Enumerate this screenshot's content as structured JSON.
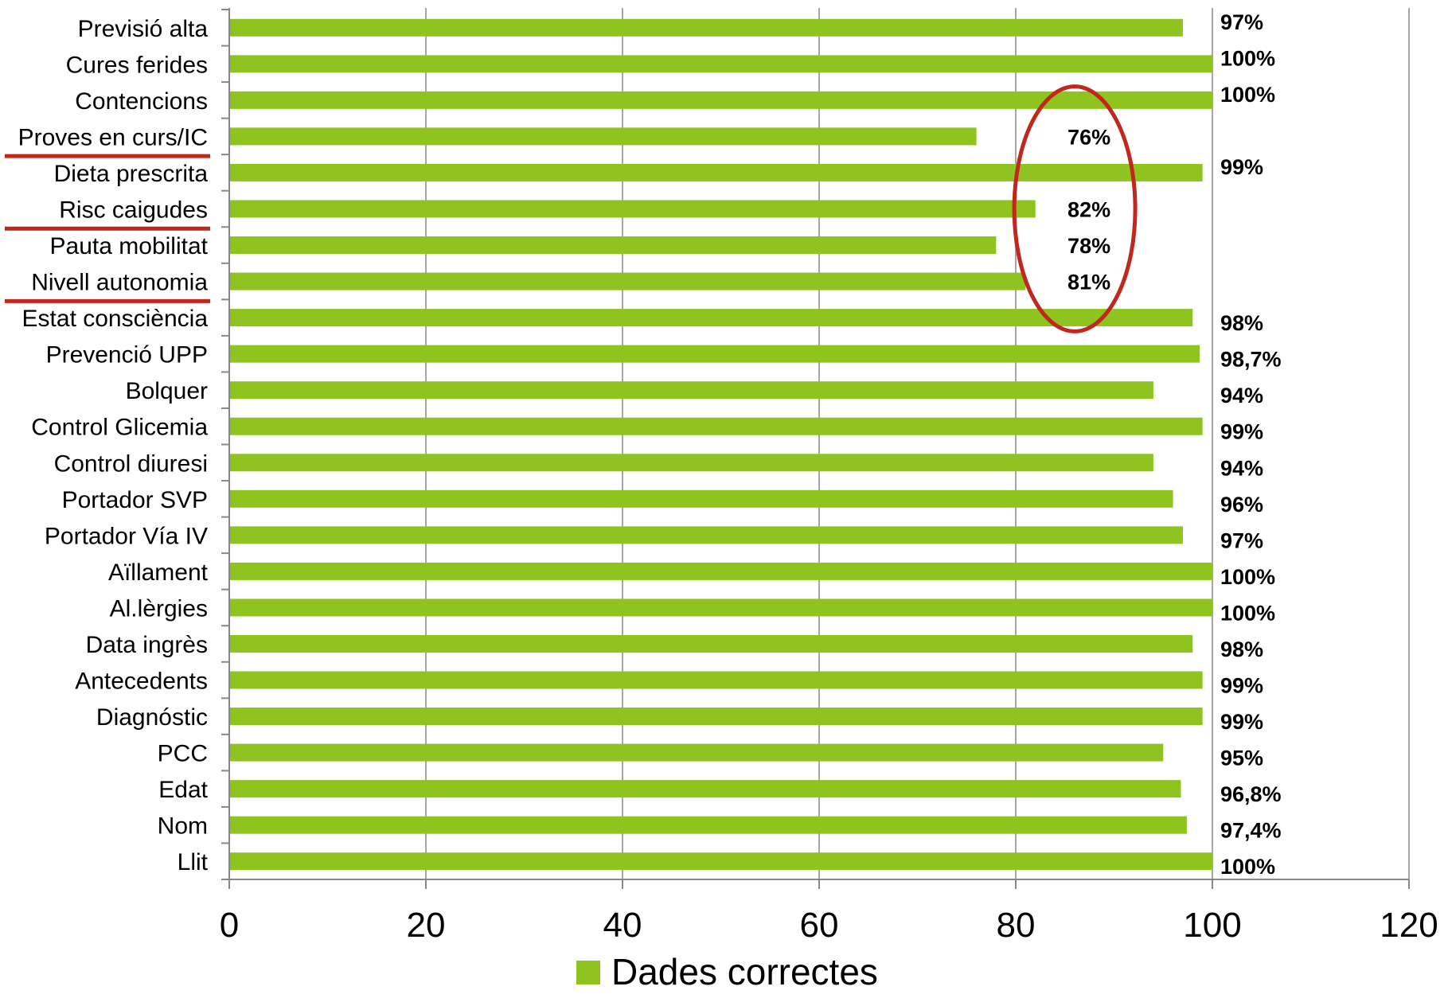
{
  "chart_data": {
    "type": "bar",
    "orientation": "horizontal",
    "categories": [
      "Previsió alta",
      "Cures ferides",
      "Contencions",
      "Proves en curs/IC",
      "Dieta prescrita",
      "Risc caigudes",
      "Pauta mobilitat",
      "Nivell autonomia",
      "Estat consciència",
      "Prevenció UPP",
      "Bolquer",
      "Control Glicemia",
      "Control diuresi",
      "Portador SVP",
      "Portador Vía IV",
      "Aïllament",
      "Al.lèrgies",
      "Data ingrès",
      "Antecedents",
      "Diagnóstic",
      "PCC",
      "Edat",
      "Nom",
      "Llit"
    ],
    "series": [
      {
        "name": "Dades correctes",
        "values": [
          97,
          100,
          100,
          76,
          99,
          82,
          78,
          81,
          98,
          98.7,
          94,
          99,
          94,
          96,
          97,
          100,
          100,
          98,
          99,
          99,
          95,
          96.8,
          97.4,
          100
        ],
        "labels": [
          "97%",
          "100%",
          "100%",
          "76%",
          "99%",
          "82%",
          "78%",
          "81%",
          "98%",
          "98,7%",
          "94%",
          "99%",
          "94%",
          "96%",
          "97%",
          "100%",
          "100%",
          "98%",
          "99%",
          "99%",
          "95%",
          "96,8%",
          "97,4%",
          "100%"
        ],
        "color": "#8fc31f"
      }
    ],
    "xlim": [
      0,
      120
    ],
    "xticks": [
      "0",
      "20",
      "40",
      "60",
      "80",
      "100",
      "120"
    ],
    "grid": "vertical",
    "legend": "bottom-center",
    "highlighted_categories": [
      "Proves en curs/IC",
      "Risc caigudes",
      "Nivell autonomia"
    ],
    "highlight_color": "#c0281e",
    "circled_categories": [
      "Proves en curs/IC",
      "Risc caigudes",
      "Pauta mobilitat",
      "Nivell autonomia"
    ]
  }
}
